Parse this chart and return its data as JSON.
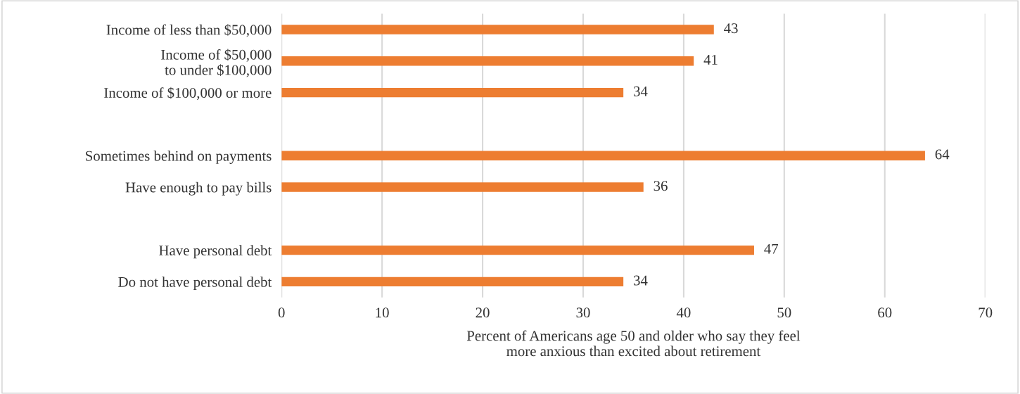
{
  "chart_data": {
    "type": "bar",
    "orientation": "horizontal",
    "categories": [
      "Income of less than $50,000",
      "Income of $50,000\nto under $100,000",
      "Income of $100,000 or more",
      null,
      "Sometimes behind on payments",
      "Have enough to pay bills",
      null,
      "Have personal debt",
      "Do not have personal debt"
    ],
    "values": [
      43,
      41,
      34,
      null,
      64,
      36,
      null,
      47,
      34
    ],
    "color": "#ed7d31",
    "xlim": [
      0,
      70
    ],
    "xticks": [
      0,
      10,
      20,
      30,
      40,
      50,
      60,
      70
    ],
    "xlabel": "Percent of Americans age 50 and older who say they feel\nmore anxious than excited about retirement",
    "grid": "x",
    "data_labels": true,
    "legend": false
  }
}
